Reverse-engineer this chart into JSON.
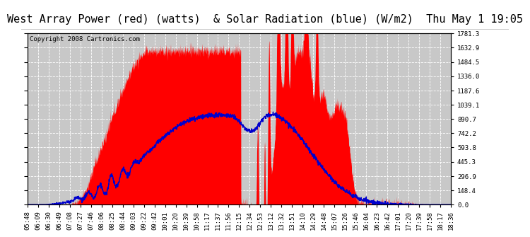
{
  "title": "West Array Power (red) (watts)  & Solar Radiation (blue) (W/m2)  Thu May 1 19:05",
  "copyright": "Copyright 2008 Cartronics.com",
  "yticks": [
    0.0,
    148.4,
    296.9,
    445.3,
    593.8,
    742.2,
    890.7,
    1039.1,
    1187.6,
    1336.0,
    1484.5,
    1632.9,
    1781.3
  ],
  "ytick_labels": [
    "0.0",
    "148.4",
    "296.9",
    "445.3",
    "593.8",
    "742.2",
    "890.7",
    "1039.1",
    "1187.6",
    "1336.0",
    "1484.5",
    "1632.9",
    "1781.3"
  ],
  "xtick_labels": [
    "05:48",
    "06:09",
    "06:30",
    "06:49",
    "07:08",
    "07:27",
    "07:46",
    "08:06",
    "08:25",
    "08:44",
    "09:03",
    "09:22",
    "09:42",
    "10:01",
    "10:20",
    "10:39",
    "10:58",
    "11:17",
    "11:37",
    "11:56",
    "12:15",
    "12:34",
    "12:53",
    "13:12",
    "13:32",
    "13:51",
    "14:10",
    "14:29",
    "14:48",
    "15:07",
    "15:26",
    "15:46",
    "16:04",
    "16:23",
    "16:42",
    "17:01",
    "17:20",
    "17:39",
    "17:58",
    "18:17",
    "18:36"
  ],
  "bg_color": "#c8c8c8",
  "red_color": "#ff0000",
  "blue_color": "#0000cd",
  "grid_color": "#ffffff",
  "title_fontsize": 11,
  "copyright_fontsize": 6.5,
  "tick_fontsize": 6.5,
  "ymax": 1781.3,
  "ymin": 0.0
}
